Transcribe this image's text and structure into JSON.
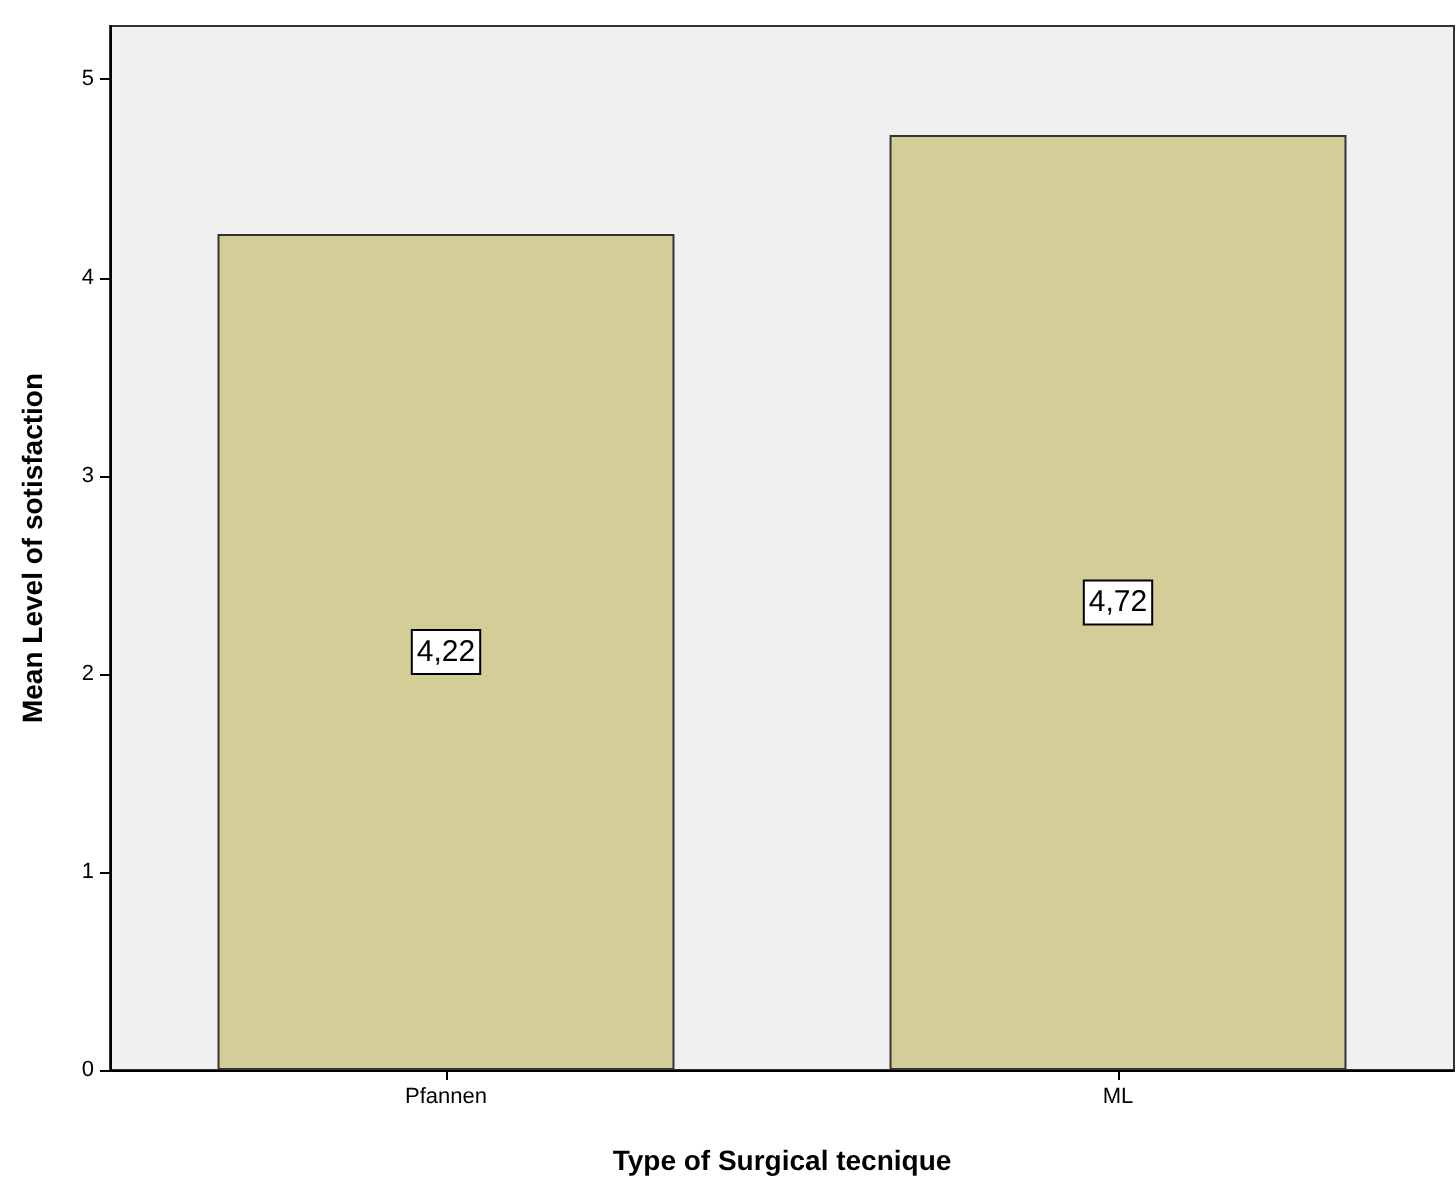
{
  "chart_data": {
    "type": "bar",
    "xlabel": "Type of Surgical tecnique",
    "ylabel": "Mean Level of sotisfaction",
    "categories": [
      "Pfannen",
      "ML"
    ],
    "values": [
      4.22,
      4.72
    ],
    "value_labels": [
      "4,22",
      "4,72"
    ],
    "color": "#d3ce97",
    "ylim": [
      0,
      5.27
    ],
    "yticks": [
      0,
      1,
      2,
      3,
      4,
      5
    ]
  }
}
